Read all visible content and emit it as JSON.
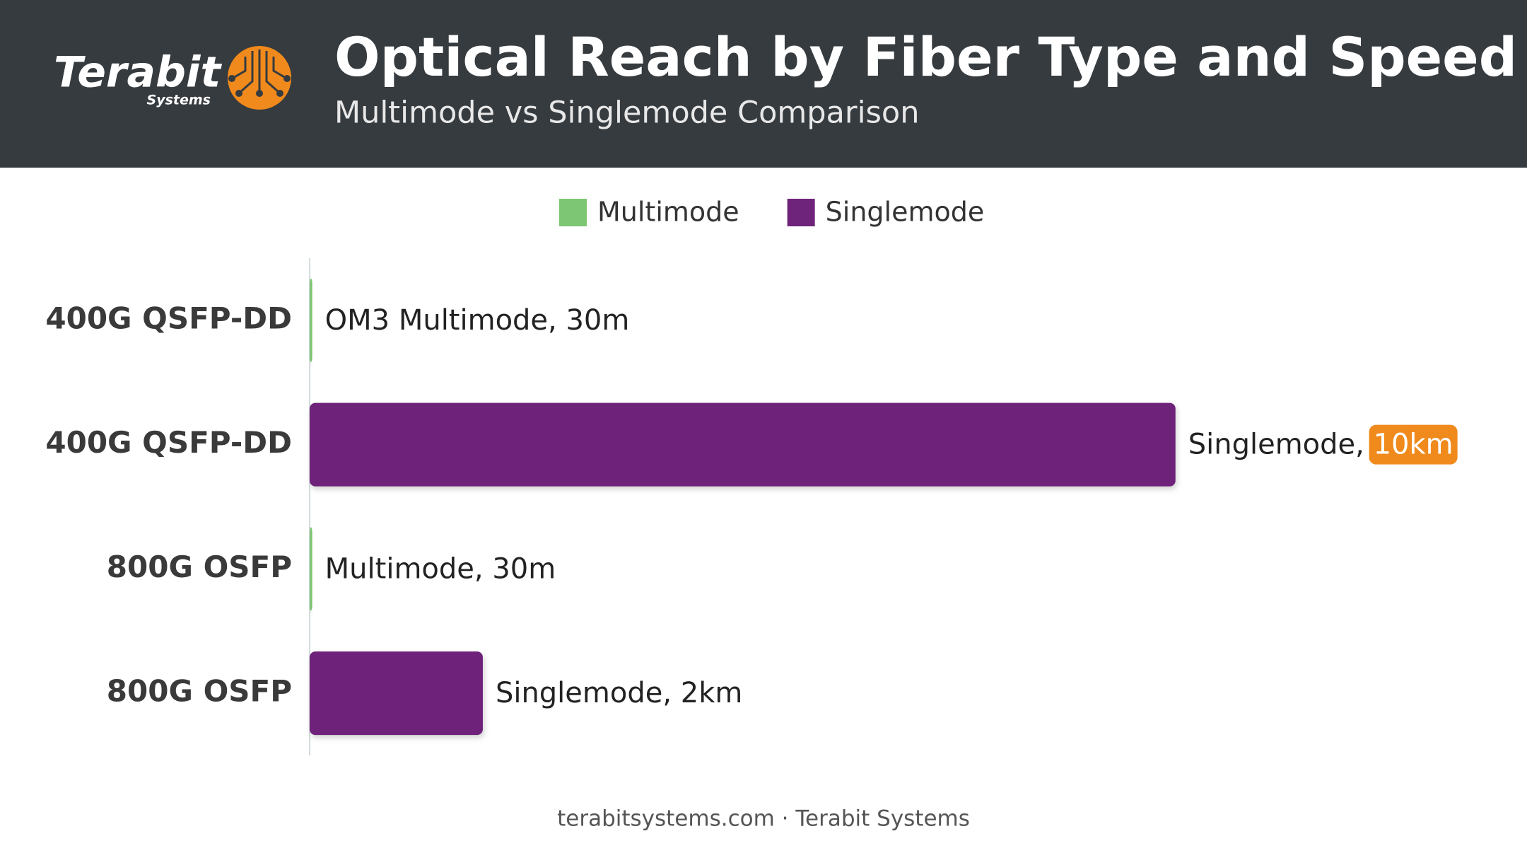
{
  "brand": {
    "name": "Terabit",
    "tagline": "Systems"
  },
  "chart_data": {
    "type": "bar",
    "orientation": "horizontal",
    "title": "Optical Reach by Fiber Type and Speed",
    "subtitle": "Multimode vs Singlemode Comparison",
    "categories": [
      "400G QSFP-DD",
      "400G QSFP-DD",
      "800G OSFP",
      "800G OSFP"
    ],
    "series": [
      {
        "name": "Multimode",
        "color": "#7dc673",
        "values": [
          30,
          null,
          30,
          null
        ],
        "value_labels": [
          "OM3 Multimode, 30m",
          null,
          "Multimode, 30m",
          null
        ]
      },
      {
        "name": "Singlemode",
        "color": "#6e247a",
        "values": [
          null,
          10000,
          null,
          2000
        ],
        "value_labels": [
          null,
          "Singlemode, 10km",
          null,
          "Singlemode, 2km"
        ],
        "highlight_color": "#f08a1c",
        "highlight": [
          false,
          true,
          false,
          false
        ]
      }
    ],
    "legend": "top"
  },
  "footer": "terabitsystems.com · Terabit Systems"
}
